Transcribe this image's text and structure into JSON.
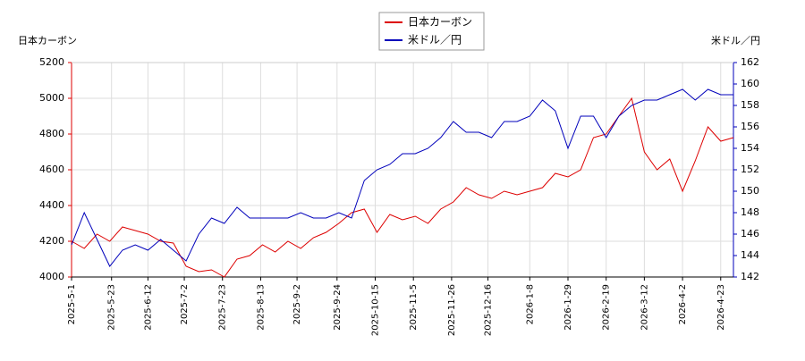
{
  "chart_data": {
    "type": "line",
    "y_label": "日本カーボン",
    "y2_label": "米ドル／円",
    "x": [
      "2025-5-1",
      "2025-5-8",
      "2025-5-15",
      "2025-5-22",
      "2025-5-29",
      "2025-6-5",
      "2025-6-12",
      "2025-6-19",
      "2025-6-26",
      "2025-7-3",
      "2025-7-10",
      "2025-7-17",
      "2025-7-24",
      "2025-7-31",
      "2025-8-7",
      "2025-8-14",
      "2025-8-21",
      "2025-8-28",
      "2025-9-4",
      "2025-9-11",
      "2025-9-18",
      "2025-9-25",
      "2025-10-2",
      "2025-10-9",
      "2025-10-16",
      "2025-10-23",
      "2025-10-30",
      "2025-11-6",
      "2025-11-13",
      "2025-11-20",
      "2025-11-27",
      "2025-12-4",
      "2025-12-11",
      "2025-12-18",
      "2025-12-25",
      "2026-1-1",
      "2026-1-8",
      "2026-1-15",
      "2026-1-22",
      "2026-1-29",
      "2026-2-5",
      "2026-2-12",
      "2026-2-19",
      "2026-2-26",
      "2026-3-5",
      "2026-3-12",
      "2026-3-19",
      "2026-3-26",
      "2026-4-2",
      "2026-4-9",
      "2026-4-16",
      "2026-4-23",
      "2026-4-30"
    ],
    "series": [
      {
        "name": "日本カーボン",
        "color": "#dd0000",
        "values": [
          4200,
          4160,
          4240,
          4200,
          4280,
          4260,
          4240,
          4200,
          4190,
          4060,
          4030,
          4040,
          4000,
          4100,
          4120,
          4180,
          4140,
          4200,
          4160,
          4220,
          4250,
          4300,
          4360,
          4380,
          4250,
          4350,
          4320,
          4340,
          4300,
          4380,
          4420,
          4500,
          4460,
          4440,
          4480,
          4460,
          4480,
          4500,
          4580,
          4560,
          4600,
          4780,
          4800,
          4900,
          5000,
          4700,
          4600,
          4660,
          4480,
          4650,
          4840,
          4760,
          4780
        ]
      },
      {
        "name": "米ドル／円",
        "color": "#0000bb",
        "axis": "y2",
        "values": [
          145,
          148,
          145.5,
          143,
          144.5,
          145,
          144.5,
          145.5,
          144.5,
          143.5,
          146,
          147.5,
          147,
          148.5,
          147.5,
          147.5,
          147.5,
          147.5,
          148,
          147.5,
          147.5,
          148,
          147.5,
          151,
          152,
          152.5,
          153.5,
          153.5,
          154,
          155,
          156.5,
          155.5,
          155.5,
          155,
          156.5,
          156.5,
          157,
          158.5,
          157.5,
          154,
          157,
          157,
          155,
          157,
          158,
          158.5,
          158.5,
          159,
          159.5,
          158.5,
          159.5,
          159,
          159
        ]
      }
    ],
    "xlim": [
      "2025-5-1",
      "2026-4-30"
    ],
    "xticks": [
      "2025-5-1",
      "2025-5-23",
      "2025-6-12",
      "2025-7-2",
      "2025-7-23",
      "2025-8-13",
      "2025-9-2",
      "2025-9-24",
      "2025-10-15",
      "2025-11-5",
      "2025-11-26",
      "2025-12-16",
      "2026-1-8",
      "2026-1-29",
      "2026-2-19",
      "2026-3-12",
      "2026-4-2",
      "2026-4-23"
    ],
    "ylim": [
      4000,
      5200
    ],
    "yticks": [
      4000,
      4200,
      4400,
      4600,
      4800,
      5000,
      5200
    ],
    "y2lim": [
      142,
      162
    ],
    "y2ticks": [
      142,
      144,
      146,
      148,
      150,
      152,
      154,
      156,
      158,
      160,
      162
    ],
    "grid": true
  }
}
